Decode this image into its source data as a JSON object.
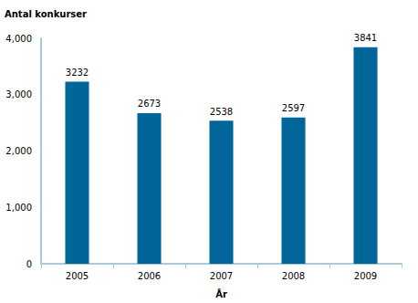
{
  "chart_data": {
    "type": "bar",
    "y_label": "Antal konkurser",
    "x_label": "År",
    "categories": [
      "2005",
      "2006",
      "2007",
      "2008",
      "2009"
    ],
    "values": [
      3232,
      2673,
      2538,
      2597,
      3841
    ],
    "color": "#006699",
    "ylim": [
      0,
      4000
    ],
    "yticks": [
      0,
      1000,
      2000,
      3000,
      4000
    ],
    "grid": false,
    "data_labels": true
  }
}
